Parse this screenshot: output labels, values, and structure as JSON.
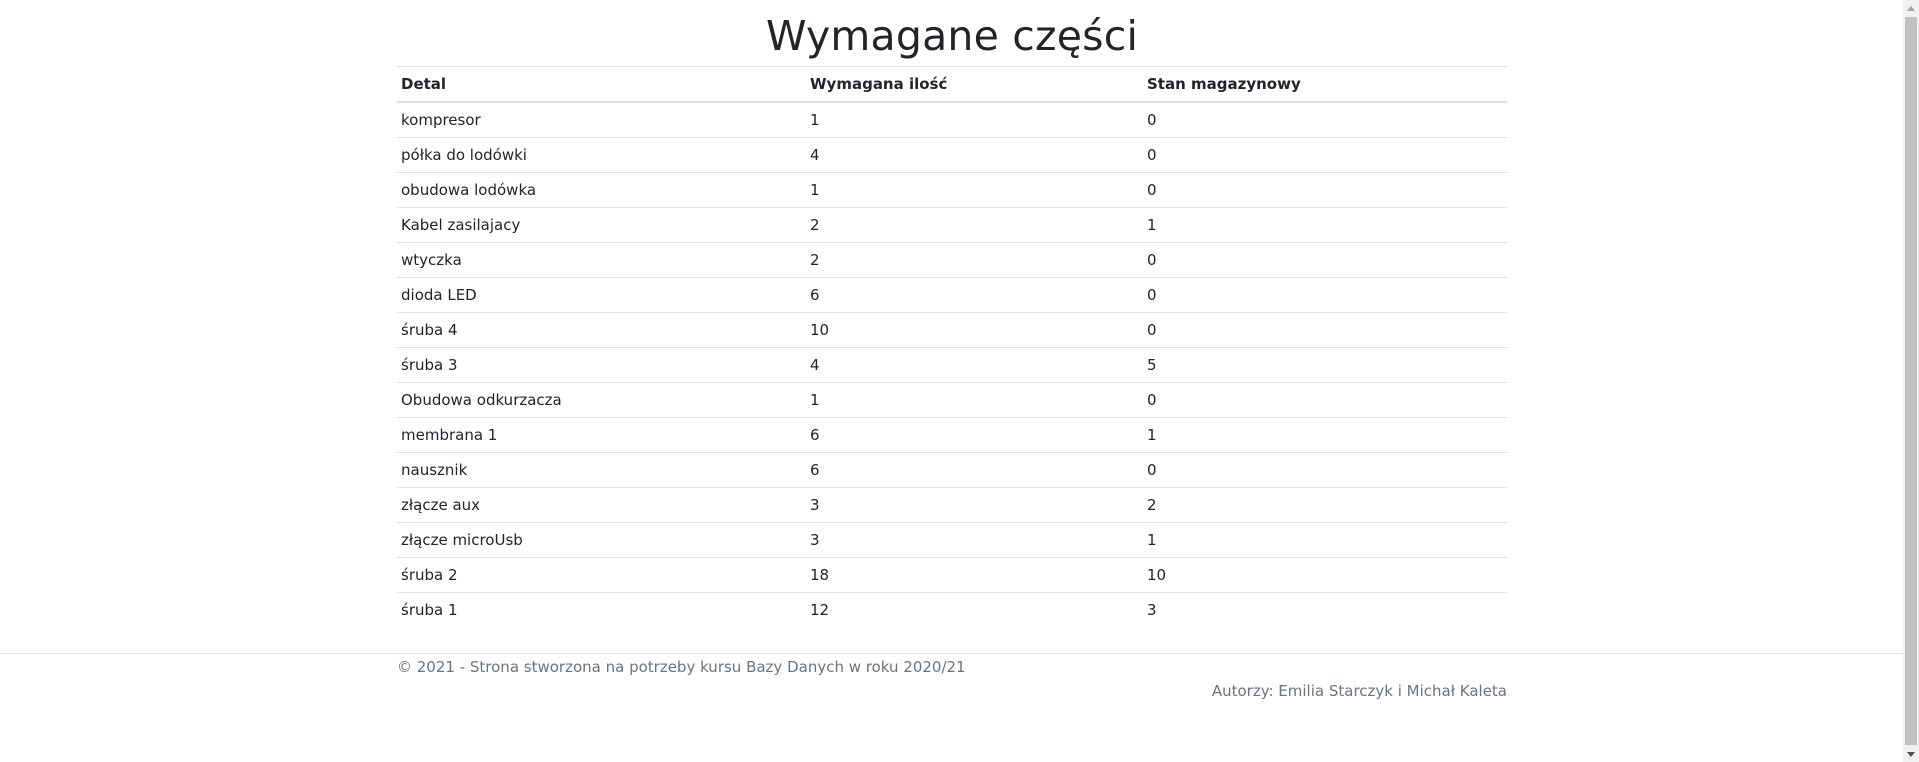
{
  "page": {
    "title": "Wymagane części"
  },
  "table": {
    "headers": {
      "detal": "Detal",
      "wymagana_ilosc": "Wymagana ilość",
      "stan_magazynowy": "Stan magazynowy"
    },
    "rows": [
      {
        "detal": "kompresor",
        "wymagana_ilosc": "1",
        "stan_magazynowy": "0"
      },
      {
        "detal": "półka do lodówki",
        "wymagana_ilosc": "4",
        "stan_magazynowy": "0"
      },
      {
        "detal": "obudowa lodówka",
        "wymagana_ilosc": "1",
        "stan_magazynowy": "0"
      },
      {
        "detal": "Kabel zasilajacy",
        "wymagana_ilosc": "2",
        "stan_magazynowy": "1"
      },
      {
        "detal": "wtyczka",
        "wymagana_ilosc": "2",
        "stan_magazynowy": "0"
      },
      {
        "detal": "dioda LED",
        "wymagana_ilosc": "6",
        "stan_magazynowy": "0"
      },
      {
        "detal": "śruba 4",
        "wymagana_ilosc": "10",
        "stan_magazynowy": "0"
      },
      {
        "detal": "śruba 3",
        "wymagana_ilosc": "4",
        "stan_magazynowy": "5"
      },
      {
        "detal": "Obudowa odkurzacza",
        "wymagana_ilosc": "1",
        "stan_magazynowy": "0"
      },
      {
        "detal": "membrana 1",
        "wymagana_ilosc": "6",
        "stan_magazynowy": "1"
      },
      {
        "detal": "nausznik",
        "wymagana_ilosc": "6",
        "stan_magazynowy": "0"
      },
      {
        "detal": "złącze aux",
        "wymagana_ilosc": "3",
        "stan_magazynowy": "2"
      },
      {
        "detal": "złącze microUsb",
        "wymagana_ilosc": "3",
        "stan_magazynowy": "1"
      },
      {
        "detal": "śruba 2",
        "wymagana_ilosc": "18",
        "stan_magazynowy": "10"
      },
      {
        "detal": "śruba 1",
        "wymagana_ilosc": "12",
        "stan_magazynowy": "3"
      }
    ]
  },
  "footer": {
    "copyright": "© 2021 - Strona stworzona na potrzeby kursu Bazy Danych w roku 2020/21",
    "authors": "Autorzy: Emilia Starczyk i Michał Kaleta"
  }
}
